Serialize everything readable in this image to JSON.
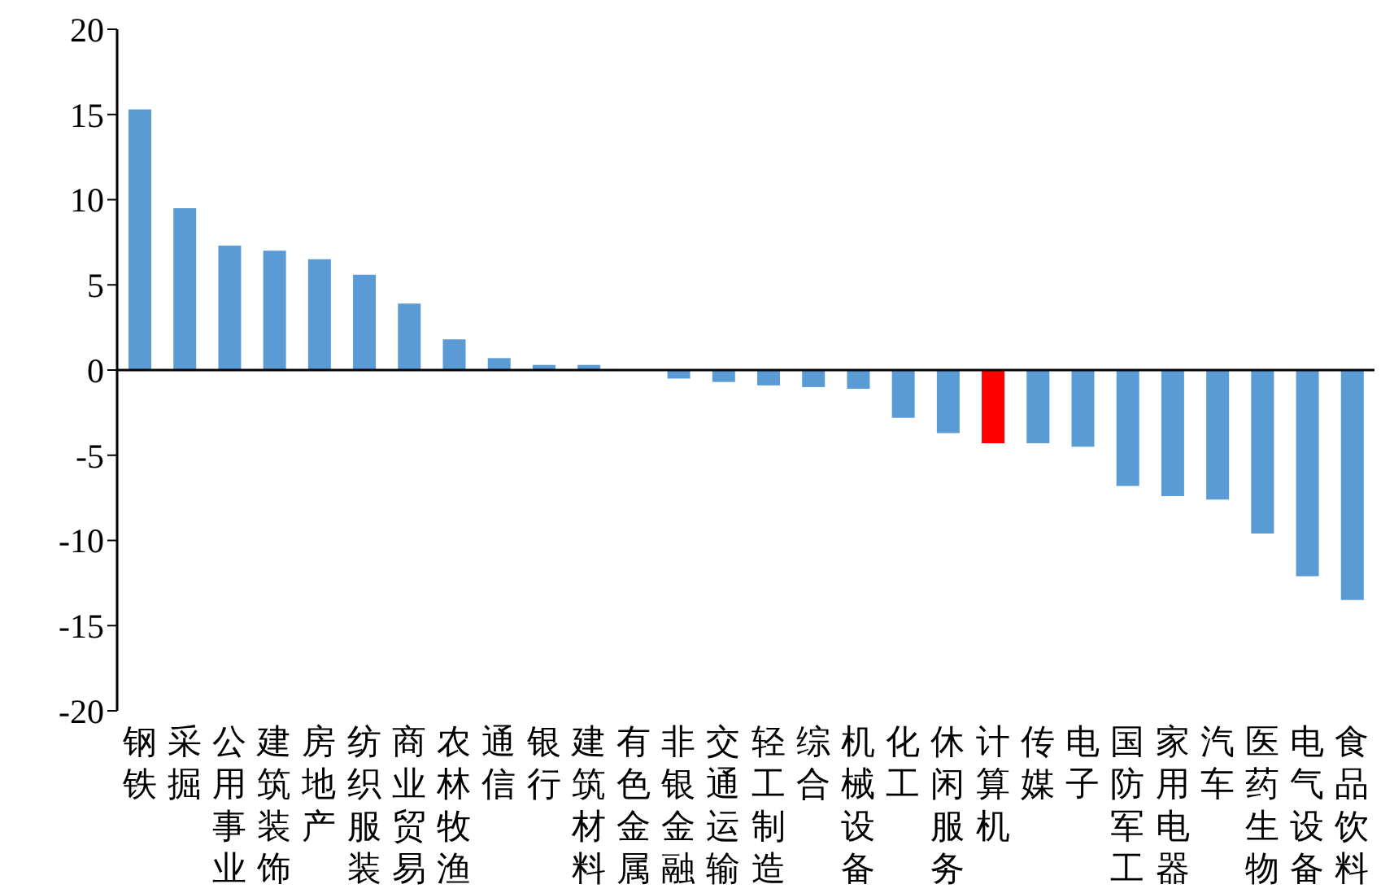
{
  "chart_data": {
    "type": "bar",
    "categories": [
      "钢铁",
      "采掘",
      "公用事业",
      "建筑装饰",
      "房地产",
      "纺织服装",
      "商业贸易",
      "农林牧渔",
      "通信",
      "银行",
      "建筑材料",
      "有色金属",
      "非银金融",
      "交通运输",
      "轻工制造",
      "综合",
      "机械设备",
      "化工",
      "休闲服务",
      "计算机",
      "传媒",
      "电子",
      "国防军工",
      "家用电器",
      "汽车",
      "医药生物",
      "电气设备",
      "食品饮料"
    ],
    "values": [
      15.3,
      9.5,
      7.3,
      7.0,
      6.5,
      5.6,
      3.9,
      1.8,
      0.7,
      0.3,
      0.3,
      0,
      -0.5,
      -0.7,
      -0.9,
      -1.0,
      -1.1,
      -2.8,
      -3.7,
      -4.3,
      -4.3,
      -4.5,
      -6.8,
      -7.4,
      -7.6,
      -9.6,
      -12.1,
      -13.5
    ],
    "colors": [
      "#5b9bd5",
      "#5b9bd5",
      "#5b9bd5",
      "#5b9bd5",
      "#5b9bd5",
      "#5b9bd5",
      "#5b9bd5",
      "#5b9bd5",
      "#5b9bd5",
      "#5b9bd5",
      "#5b9bd5",
      "#5b9bd5",
      "#5b9bd5",
      "#5b9bd5",
      "#5b9bd5",
      "#5b9bd5",
      "#5b9bd5",
      "#5b9bd5",
      "#5b9bd5",
      "#ff0000",
      "#5b9bd5",
      "#5b9bd5",
      "#5b9bd5",
      "#5b9bd5",
      "#5b9bd5",
      "#5b9bd5",
      "#5b9bd5",
      "#5b9bd5"
    ],
    "ylim": [
      -20,
      20
    ],
    "yticks": [
      -20,
      -15,
      -10,
      -5,
      0,
      5,
      10,
      15,
      20
    ]
  }
}
